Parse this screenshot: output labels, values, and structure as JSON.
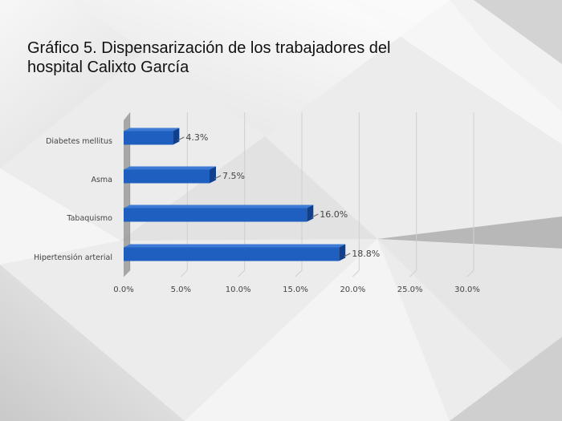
{
  "slide": {
    "title": "Gráfico 5. Dispensarización de los trabajadores del hospital Calixto García"
  },
  "colors": {
    "bar_front": "#1f5fc0",
    "bar_top": "#3d7ad6",
    "bar_side": "#123f8a",
    "label_text": "#444444",
    "title_text": "#111111"
  },
  "chart_data": {
    "type": "bar",
    "orientation": "horizontal",
    "style": "3d",
    "title": "Gráfico 5. Dispensarización de los trabajadores del hospital Calixto García",
    "categories": [
      "Diabetes mellitus",
      "Asma",
      "Tabaquismo",
      "Hipertensión arterial"
    ],
    "values": [
      4.3,
      7.5,
      16.0,
      18.8
    ],
    "data_labels": [
      "4.3%",
      "7.5%",
      "16.0%",
      "18.8%"
    ],
    "x_ticks": [
      "0.0%",
      "5.0%",
      "10.0%",
      "15.0%",
      "20.0%",
      "25.0%",
      "30.0%"
    ],
    "xlim": [
      0,
      30
    ],
    "xlabel": "",
    "ylabel": "",
    "grid": "vertical",
    "legend": "none"
  }
}
